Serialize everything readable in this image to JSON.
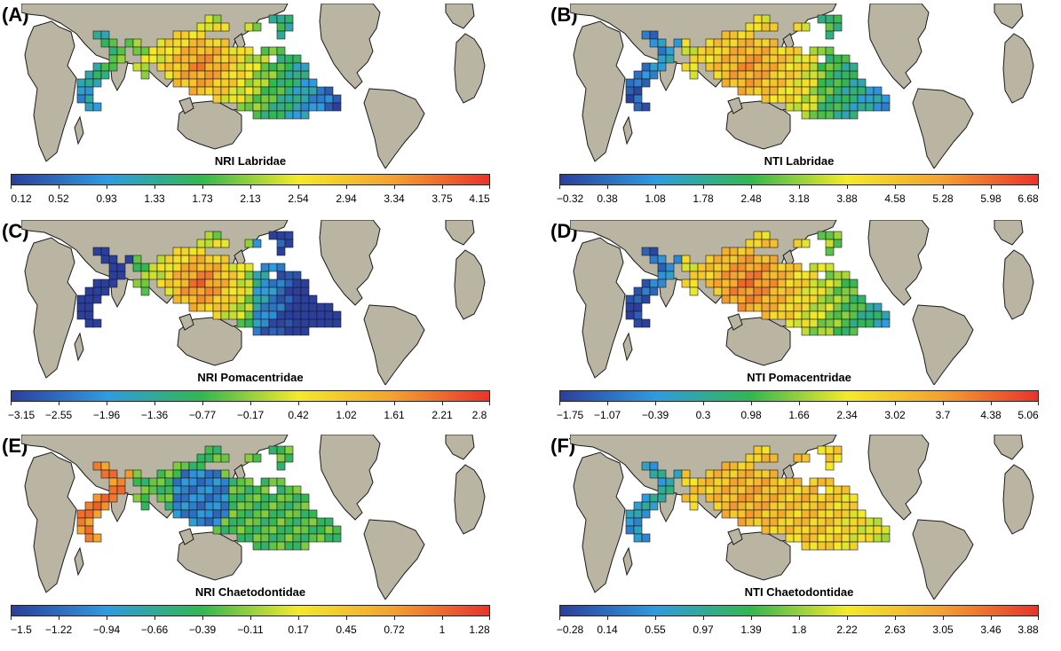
{
  "colors": {
    "land": "#b9b5a2",
    "land_edge": "#1a1a1a",
    "scale": [
      "#2b3f9e",
      "#2f9be0",
      "#33b84f",
      "#f4ea2a",
      "#f4a030",
      "#e8342a"
    ]
  },
  "panels": [
    {
      "label": "(A)",
      "title": "NRI Labridae",
      "ticks": [
        "0.12",
        "0.52",
        "0.93",
        "1.33",
        "1.73",
        "2.13",
        "2.54",
        "2.94",
        "3.34",
        "3.75",
        "4.15"
      ]
    },
    {
      "label": "(B)",
      "title": "NTI Labridae",
      "ticks": [
        "−0.32",
        "0.38",
        "1.08",
        "1.78",
        "2.48",
        "3.18",
        "3.88",
        "4.58",
        "5.28",
        "5.98",
        "6.68"
      ]
    },
    {
      "label": "(C)",
      "title": "NRI Pomacentridae",
      "ticks": [
        "−3.15",
        "−2.55",
        "−1.96",
        "−1.36",
        "−0.77",
        "−0.17",
        "0.42",
        "1.02",
        "1.61",
        "2.21",
        "2.8"
      ]
    },
    {
      "label": "(D)",
      "title": "NTI Pomacentridae",
      "ticks": [
        "−1.75",
        "−1.07",
        "−0.39",
        "0.3",
        "0.98",
        "1.66",
        "2.34",
        "3.02",
        "3.7",
        "4.38",
        "5.06"
      ]
    },
    {
      "label": "(E)",
      "title": "NRI Chaetodontidae",
      "ticks": [
        "−1.5",
        "−1.22",
        "−0.94",
        "−0.66",
        "−0.39",
        "−0.11",
        "0.17",
        "0.45",
        "0.72",
        "1",
        "1.28"
      ]
    },
    {
      "label": "(F)",
      "title": "NTI Chaetodontidae",
      "ticks": [
        "−0.28",
        "0.14",
        "0.55",
        "0.97",
        "1.39",
        "1.8",
        "2.22",
        "2.63",
        "3.05",
        "3.46",
        "3.88"
      ]
    }
  ]
}
